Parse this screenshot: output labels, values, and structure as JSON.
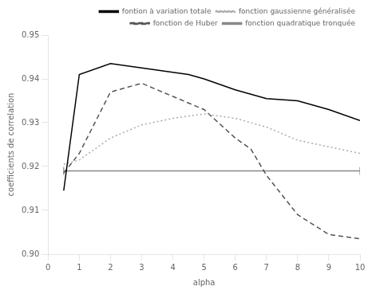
{
  "chart_data": {
    "type": "line",
    "xlabel": "alpha",
    "ylabel": "coefficients de correlation",
    "xlim": [
      0,
      10
    ],
    "ylim": [
      0.9,
      0.95
    ],
    "xticks": [
      0,
      1,
      2,
      3,
      4,
      5,
      6,
      7,
      8,
      9,
      10
    ],
    "yticks": [
      {
        "value": 0.9,
        "label": "0.90"
      },
      0.91,
      0.92,
      0.93,
      0.94,
      0.95
    ],
    "grid": false,
    "legend": "upper right",
    "series": [
      {
        "name": "fontion à variation totale",
        "color": "#000000",
        "line_style": "solid",
        "x": [
          0.5,
          1.0,
          2.0,
          3.0,
          4.0,
          4.5,
          5.0,
          6.0,
          7.0,
          8.0,
          9.0,
          10.0
        ],
        "values": [
          0.9145,
          0.941,
          0.9435,
          0.9425,
          0.9415,
          0.941,
          0.94,
          0.9375,
          0.9355,
          0.935,
          0.933,
          0.9305
        ]
      },
      {
        "name": "fonction gaussienne généralisée",
        "color": "#aaaaaa",
        "line_style": "dotted",
        "x": [
          0.5,
          1.0,
          2.0,
          3.0,
          4.0,
          5.0,
          6.0,
          7.0,
          8.0,
          9.0,
          10.0
        ],
        "values": [
          0.9205,
          0.9215,
          0.9265,
          0.9295,
          0.931,
          0.932,
          0.931,
          0.929,
          0.926,
          0.9245,
          0.923
        ]
      },
      {
        "name": "fonction de Huber",
        "color": "#555555",
        "line_style": "dashed",
        "x": [
          0.5,
          1.0,
          2.0,
          3.0,
          4.0,
          5.0,
          6.0,
          6.5,
          7.0,
          8.0,
          9.0,
          10.0
        ],
        "values": [
          0.9185,
          0.923,
          0.937,
          0.939,
          0.936,
          0.933,
          0.9265,
          0.924,
          0.918,
          0.909,
          0.9045,
          0.9035
        ]
      },
      {
        "name": "fonction quadratique tronquée",
        "color": "#888888",
        "line_style": "solid",
        "marker": "tick",
        "x": [
          0.5,
          10.0
        ],
        "values": [
          0.919,
          0.919
        ]
      }
    ]
  }
}
